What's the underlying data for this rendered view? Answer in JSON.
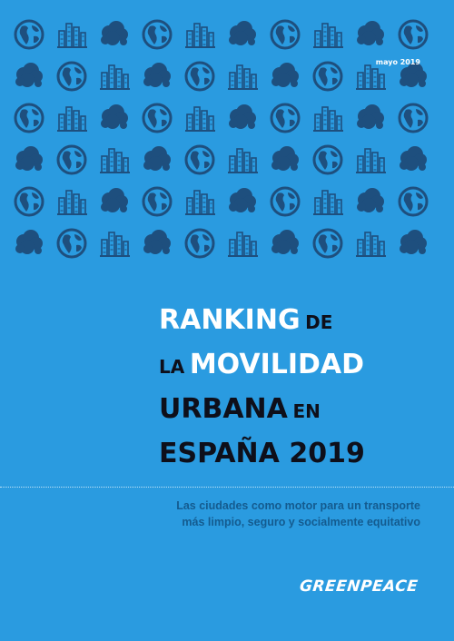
{
  "cover": {
    "date": "mayo 2019",
    "title": {
      "line1_big": "RANKING",
      "line1_small": "DE",
      "line2_small": "LA",
      "line2_big": "MOVILIDAD",
      "line3_big": "URBANA",
      "line3_small": "EN",
      "line4_big": "ESPAÑA 2019"
    },
    "subtitle_line1": "Las ciudades como motor para un transporte",
    "subtitle_line2": "más limpio, seguro y socialmente equitativo",
    "logo": "GREENPEACE"
  },
  "pattern": {
    "rows": [
      [
        "globe-icon",
        "building-icon",
        "cloud-icon",
        "globe-icon",
        "building-icon",
        "cloud-icon",
        "globe-icon",
        "building-icon",
        "cloud-icon",
        "globe-icon"
      ],
      [
        "cloud-icon",
        "globe-icon",
        "building-icon",
        "cloud-icon",
        "globe-icon",
        "building-icon",
        "cloud-icon",
        "globe-icon",
        "building-icon",
        "cloud-icon"
      ],
      [
        "globe-icon",
        "building-icon",
        "cloud-icon",
        "globe-icon",
        "building-icon",
        "cloud-icon",
        "globe-icon",
        "building-icon",
        "cloud-icon",
        "globe-icon"
      ],
      [
        "cloud-icon",
        "globe-icon",
        "building-icon",
        "cloud-icon",
        "globe-icon",
        "building-icon",
        "cloud-icon",
        "globe-icon",
        "building-icon",
        "cloud-icon"
      ],
      [
        "globe-icon",
        "building-icon",
        "cloud-icon",
        "globe-icon",
        "building-icon",
        "cloud-icon",
        "globe-icon",
        "building-icon",
        "cloud-icon",
        "globe-icon"
      ],
      [
        "cloud-icon",
        "globe-icon",
        "building-icon",
        "cloud-icon",
        "globe-icon",
        "building-icon",
        "cloud-icon",
        "globe-icon",
        "building-icon",
        "cloud-icon"
      ]
    ],
    "icon_color": "#1e4f7e"
  },
  "colors": {
    "background": "#2a9be0",
    "title_light": "#ffffff",
    "title_dark": "#0e0f1a",
    "subtitle": "#145b8f"
  }
}
